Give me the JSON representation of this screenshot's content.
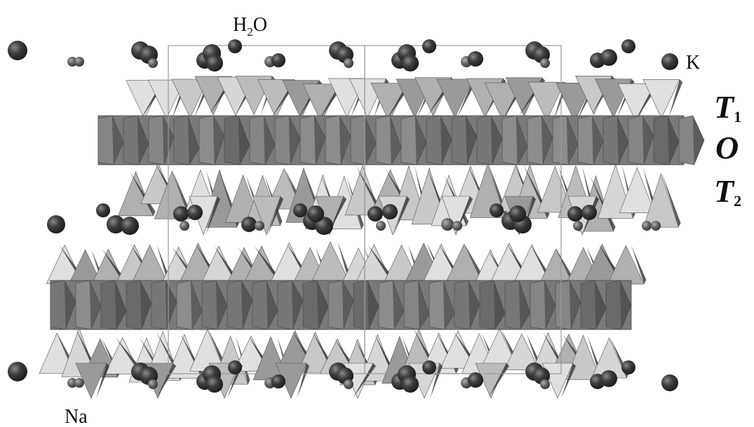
{
  "labels": {
    "water": [
      "H",
      "2",
      "O"
    ],
    "potassium": "K",
    "sodium": "Na",
    "t1": [
      "T",
      "1"
    ],
    "o": "O",
    "t2": [
      "T",
      "2"
    ]
  }
}
